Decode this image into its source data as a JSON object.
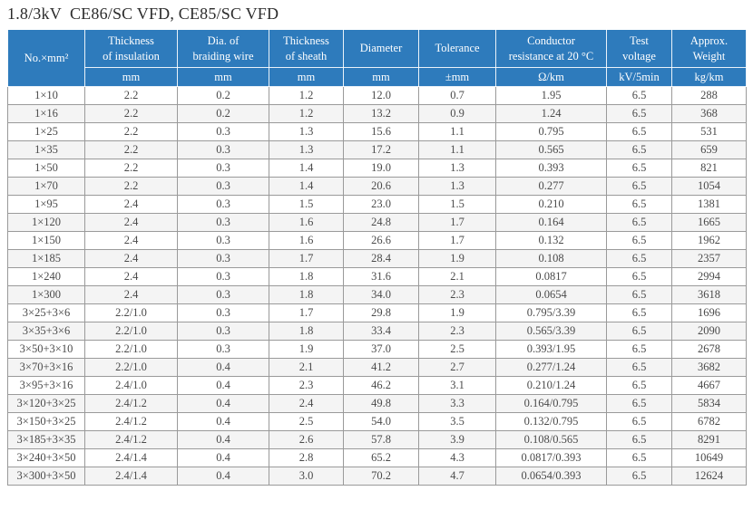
{
  "title": "1.8/3kV  CE86/SC VFD, CE85/SC VFD",
  "colors": {
    "header_bg": "#2e7bbc",
    "header_text": "#ffffff",
    "body_text": "#4a4a4a",
    "border": "#9a9a9a",
    "row_alt_bg": "#f4f4f4"
  },
  "table": {
    "columns": [
      {
        "label": "No.×mm²",
        "unit": ""
      },
      {
        "label": "Thickness\nof insulation",
        "unit": "mm"
      },
      {
        "label": "Dia. of\nbraiding wire",
        "unit": "mm"
      },
      {
        "label": "Thickness\nof sheath",
        "unit": "mm"
      },
      {
        "label": "Diameter",
        "unit": "mm"
      },
      {
        "label": "Tolerance",
        "unit": "±mm"
      },
      {
        "label": "Conductor\nresistance at 20 °C",
        "unit": "Ω/km"
      },
      {
        "label": "Test\nvoltage",
        "unit": "kV/5min"
      },
      {
        "label": "Approx.\nWeight",
        "unit": "kg/km"
      }
    ],
    "rows": [
      [
        "1×10",
        "2.2",
        "0.2",
        "1.2",
        "12.0",
        "0.7",
        "1.95",
        "6.5",
        "288"
      ],
      [
        "1×16",
        "2.2",
        "0.2",
        "1.2",
        "13.2",
        "0.9",
        "1.24",
        "6.5",
        "368"
      ],
      [
        "1×25",
        "2.2",
        "0.3",
        "1.3",
        "15.6",
        "1.1",
        "0.795",
        "6.5",
        "531"
      ],
      [
        "1×35",
        "2.2",
        "0.3",
        "1.3",
        "17.2",
        "1.1",
        "0.565",
        "6.5",
        "659"
      ],
      [
        "1×50",
        "2.2",
        "0.3",
        "1.4",
        "19.0",
        "1.3",
        "0.393",
        "6.5",
        "821"
      ],
      [
        "1×70",
        "2.2",
        "0.3",
        "1.4",
        "20.6",
        "1.3",
        "0.277",
        "6.5",
        "1054"
      ],
      [
        "1×95",
        "2.4",
        "0.3",
        "1.5",
        "23.0",
        "1.5",
        "0.210",
        "6.5",
        "1381"
      ],
      [
        "1×120",
        "2.4",
        "0.3",
        "1.6",
        "24.8",
        "1.7",
        "0.164",
        "6.5",
        "1665"
      ],
      [
        "1×150",
        "2.4",
        "0.3",
        "1.6",
        "26.6",
        "1.7",
        "0.132",
        "6.5",
        "1962"
      ],
      [
        "1×185",
        "2.4",
        "0.3",
        "1.7",
        "28.4",
        "1.9",
        "0.108",
        "6.5",
        "2357"
      ],
      [
        "1×240",
        "2.4",
        "0.3",
        "1.8",
        "31.6",
        "2.1",
        "0.0817",
        "6.5",
        "2994"
      ],
      [
        "1×300",
        "2.4",
        "0.3",
        "1.8",
        "34.0",
        "2.3",
        "0.0654",
        "6.5",
        "3618"
      ],
      [
        "3×25+3×6",
        "2.2/1.0",
        "0.3",
        "1.7",
        "29.8",
        "1.9",
        "0.795/3.39",
        "6.5",
        "1696"
      ],
      [
        "3×35+3×6",
        "2.2/1.0",
        "0.3",
        "1.8",
        "33.4",
        "2.3",
        "0.565/3.39",
        "6.5",
        "2090"
      ],
      [
        "3×50+3×10",
        "2.2/1.0",
        "0.3",
        "1.9",
        "37.0",
        "2.5",
        "0.393/1.95",
        "6.5",
        "2678"
      ],
      [
        "3×70+3×16",
        "2.2/1.0",
        "0.4",
        "2.1",
        "41.2",
        "2.7",
        "0.277/1.24",
        "6.5",
        "3682"
      ],
      [
        "3×95+3×16",
        "2.4/1.0",
        "0.4",
        "2.3",
        "46.2",
        "3.1",
        "0.210/1.24",
        "6.5",
        "4667"
      ],
      [
        "3×120+3×25",
        "2.4/1.2",
        "0.4",
        "2.4",
        "49.8",
        "3.3",
        "0.164/0.795",
        "6.5",
        "5834"
      ],
      [
        "3×150+3×25",
        "2.4/1.2",
        "0.4",
        "2.5",
        "54.0",
        "3.5",
        "0.132/0.795",
        "6.5",
        "6782"
      ],
      [
        "3×185+3×35",
        "2.4/1.2",
        "0.4",
        "2.6",
        "57.8",
        "3.9",
        "0.108/0.565",
        "6.5",
        "8291"
      ],
      [
        "3×240+3×50",
        "2.4/1.4",
        "0.4",
        "2.8",
        "65.2",
        "4.3",
        "0.0817/0.393",
        "6.5",
        "10649"
      ],
      [
        "3×300+3×50",
        "2.4/1.4",
        "0.4",
        "3.0",
        "70.2",
        "4.7",
        "0.0654/0.393",
        "6.5",
        "12624"
      ]
    ]
  }
}
